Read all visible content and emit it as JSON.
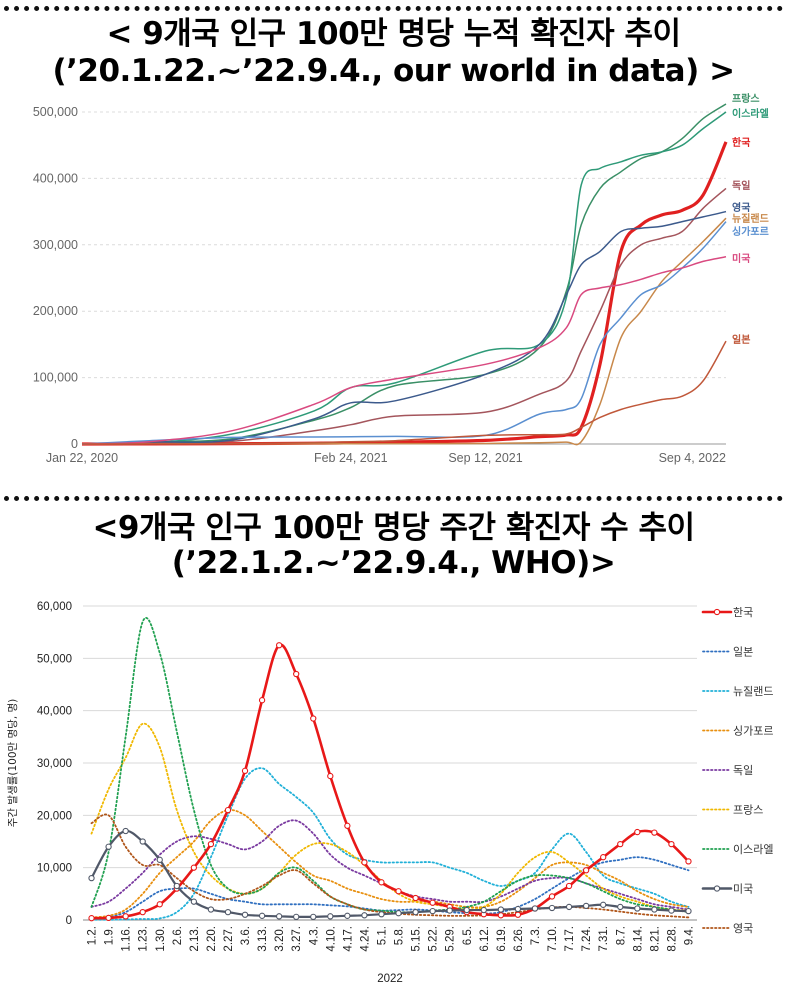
{
  "chart_data": [
    {
      "type": "line",
      "title": "< 9개국 인구 100만 명당 누적 확진자 추이",
      "subtitle": "(’20.1.22.~’22.9.4., our world in data) >",
      "xlabel": "",
      "ylabel": "",
      "x_ticks": [
        "Jan 22, 2020",
        "Feb 24, 2021",
        "Sep 12, 2021",
        "Sep 4, 2022"
      ],
      "y_ticks": [
        "0",
        "100,000",
        "200,000",
        "300,000",
        "400,000",
        "500,000"
      ],
      "ylim": [
        0,
        520000
      ],
      "grid": true,
      "legend": "line-end labels",
      "x": [
        "2020-01-22",
        "2020-05-01",
        "2020-09-01",
        "2021-01-01",
        "2021-02-24",
        "2021-05-01",
        "2021-09-12",
        "2021-12-01",
        "2022-01-10",
        "2022-02-01",
        "2022-03-01",
        "2022-04-01",
        "2022-05-01",
        "2022-06-01",
        "2022-07-01",
        "2022-08-01",
        "2022-09-04"
      ],
      "series": [
        {
          "name": "프랑스",
          "color": "#3a8f66",
          "values": [
            0,
            3000,
            8000,
            36000,
            55000,
            88000,
            105000,
            145000,
            230000,
            330000,
            385000,
            410000,
            430000,
            440000,
            460000,
            490000,
            512000
          ]
        },
        {
          "name": "이스라엘",
          "color": "#2e9a78",
          "values": [
            0,
            2000,
            15000,
            50000,
            85000,
            92000,
            140000,
            150000,
            220000,
            390000,
            415000,
            425000,
            435000,
            440000,
            450000,
            475000,
            500000
          ]
        },
        {
          "name": "한국",
          "color": "#e02020",
          "values": [
            0,
            200,
            500,
            1200,
            1800,
            2600,
            5400,
            11000,
            13500,
            25000,
            120000,
            290000,
            330000,
            345000,
            352000,
            375000,
            455000
          ]
        },
        {
          "name": "독일",
          "color": "#a4555c",
          "values": [
            0,
            2000,
            4000,
            20000,
            29000,
            42000,
            48000,
            75000,
            95000,
            140000,
            200000,
            270000,
            300000,
            310000,
            320000,
            355000,
            385000
          ]
        },
        {
          "name": "영국",
          "color": "#3c5a8c",
          "values": [
            0,
            3000,
            6000,
            38000,
            62000,
            65000,
            105000,
            150000,
            225000,
            270000,
            290000,
            320000,
            325000,
            328000,
            335000,
            342000,
            350000
          ]
        },
        {
          "name": "뉴질랜드",
          "color": "#c8884a",
          "values": [
            0,
            300,
            400,
            500,
            500,
            600,
            800,
            2000,
            2800,
            3500,
            60000,
            160000,
            200000,
            245000,
            275000,
            305000,
            340000
          ]
        },
        {
          "name": "싱가포르",
          "color": "#5a8fd0",
          "values": [
            0,
            5000,
            10000,
            10500,
            11000,
            11500,
            13000,
            45000,
            52000,
            68000,
            150000,
            190000,
            225000,
            240000,
            265000,
            295000,
            335000
          ]
        },
        {
          "name": "미국",
          "color": "#d94a80",
          "values": [
            0,
            3500,
            20000,
            60000,
            85000,
            98000,
            120000,
            145000,
            175000,
            225000,
            235000,
            240000,
            248000,
            258000,
            265000,
            275000,
            282000
          ]
        },
        {
          "name": "일본",
          "color": "#c0583a",
          "values": [
            0,
            100,
            500,
            2000,
            3500,
            5000,
            13000,
            14000,
            15000,
            25000,
            40000,
            52000,
            60000,
            67000,
            72000,
            95000,
            155000
          ]
        }
      ]
    },
    {
      "type": "line",
      "title": "<9개국 인구 100만 명당 주간 확진자 수 추이",
      "subtitle": "(’22.1.2.~’22.9.4., WHO)>",
      "xlabel": "2022",
      "ylabel": "주간 발생률(100만 명당, 명)",
      "ylim": [
        0,
        60000
      ],
      "y_ticks": [
        "0",
        "10,000",
        "20,000",
        "30,000",
        "40,000",
        "50,000",
        "60,000"
      ],
      "grid": true,
      "legend": "right",
      "categories": [
        "1.2.",
        "1.9.",
        "1.16.",
        "1.23.",
        "1.30.",
        "2.6.",
        "2.13.",
        "2.20.",
        "2.27.",
        "3.6.",
        "3.13.",
        "3.20.",
        "3.27.",
        "4.3.",
        "4.10.",
        "4.17.",
        "4.24.",
        "5.1.",
        "5.8.",
        "5.15.",
        "5.22.",
        "5.29.",
        "6.5.",
        "6.12.",
        "6.19.",
        "6.26.",
        "7.3.",
        "7.10.",
        "7.17.",
        "7.24.",
        "7.31.",
        "8.7.",
        "8.14.",
        "8.21.",
        "8.28.",
        "9.4."
      ],
      "series": [
        {
          "name": "한국",
          "color": "#e81818",
          "style": "solid",
          "values": [
            350,
            400,
            700,
            1500,
            3000,
            6000,
            10000,
            14500,
            21000,
            28500,
            42000,
            52500,
            47000,
            38500,
            27500,
            18000,
            11000,
            7200,
            5500,
            4200,
            3300,
            2500,
            1500,
            1100,
            900,
            1000,
            2200,
            4500,
            6500,
            9500,
            12000,
            14500,
            16800,
            16700,
            14500,
            11200
          ]
        },
        {
          "name": "일본",
          "color": "#2f6fc0",
          "style": "dotted",
          "values": [
            300,
            600,
            1500,
            3500,
            5500,
            6000,
            6000,
            5000,
            4000,
            3500,
            3000,
            3000,
            3000,
            3000,
            2800,
            2600,
            2200,
            1800,
            1900,
            2000,
            1800,
            1500,
            1300,
            1200,
            1500,
            2500,
            4000,
            6000,
            8000,
            9800,
            11000,
            11500,
            12000,
            11500,
            10500,
            9500
          ]
        },
        {
          "name": "뉴질랜드",
          "color": "#20b0d8",
          "style": "dotted",
          "values": [
            50,
            50,
            100,
            200,
            300,
            1500,
            5000,
            12000,
            20000,
            27000,
            29000,
            26000,
            23500,
            20500,
            15500,
            12500,
            11500,
            11000,
            11000,
            11000,
            11000,
            10000,
            9000,
            7500,
            6500,
            7500,
            9000,
            13500,
            16500,
            13000,
            8500,
            7000,
            6000,
            5000,
            3500,
            2500
          ]
        },
        {
          "name": "싱가포르",
          "color": "#e89010",
          "style": "dotted",
          "values": [
            500,
            800,
            2000,
            5000,
            9000,
            12000,
            15000,
            19000,
            21000,
            20000,
            17000,
            14000,
            11000,
            8500,
            7500,
            6000,
            5000,
            4000,
            3500,
            3500,
            3500,
            3000,
            2500,
            2500,
            3500,
            5500,
            8000,
            10500,
            11000,
            10500,
            9000,
            7500,
            5500,
            4000,
            3000,
            2500
          ]
        },
        {
          "name": "독일",
          "color": "#7a3aa0",
          "style": "dotted",
          "values": [
            2500,
            3500,
            6000,
            9000,
            12500,
            15000,
            16000,
            15500,
            14500,
            13500,
            15000,
            18000,
            19000,
            16500,
            12500,
            10000,
            8500,
            7000,
            5500,
            4500,
            4000,
            3500,
            3500,
            3500,
            4500,
            6000,
            7500,
            8000,
            8000,
            7000,
            6000,
            5000,
            4000,
            3000,
            2500,
            2000
          ]
        },
        {
          "name": "프랑스",
          "color": "#f0b800",
          "style": "dotted",
          "values": [
            16500,
            25000,
            31000,
            37500,
            33000,
            21000,
            13000,
            8500,
            6000,
            5000,
            6000,
            9000,
            12500,
            14500,
            14500,
            13000,
            10500,
            7500,
            5000,
            3500,
            3000,
            2500,
            2000,
            2500,
            5000,
            9000,
            12000,
            13000,
            11000,
            8500,
            6000,
            4500,
            3500,
            2500,
            2000,
            1800
          ]
        },
        {
          "name": "이스라엘",
          "color": "#20a050",
          "style": "dotted",
          "values": [
            2500,
            13000,
            35000,
            57000,
            51000,
            36000,
            21000,
            10500,
            6000,
            5000,
            6000,
            9000,
            10000,
            7500,
            4500,
            3000,
            2000,
            1800,
            1500,
            1500,
            1800,
            2000,
            2500,
            3500,
            5500,
            7500,
            8500,
            8500,
            8000,
            7000,
            5500,
            4000,
            3000,
            2500,
            2000,
            1500
          ]
        },
        {
          "name": "미국",
          "color": "#505868",
          "style": "solid",
          "values": [
            8000,
            14000,
            17000,
            15000,
            11500,
            6500,
            3500,
            2000,
            1500,
            1000,
            800,
            700,
            600,
            600,
            700,
            800,
            900,
            1100,
            1300,
            1500,
            1700,
            1800,
            1900,
            1900,
            2000,
            2100,
            2200,
            2300,
            2500,
            2700,
            2900,
            2500,
            2200,
            2000,
            1800,
            1700
          ]
        },
        {
          "name": "영국",
          "color": "#b0561a",
          "style": "dotted",
          "values": [
            18500,
            20000,
            14000,
            10500,
            10500,
            8000,
            5500,
            4000,
            4000,
            5000,
            6500,
            8500,
            9500,
            7000,
            4500,
            3000,
            2000,
            1500,
            1200,
            1000,
            900,
            800,
            800,
            900,
            1100,
            1500,
            2000,
            2400,
            2500,
            2300,
            2000,
            1600,
            1200,
            900,
            700,
            500
          ]
        }
      ]
    }
  ]
}
